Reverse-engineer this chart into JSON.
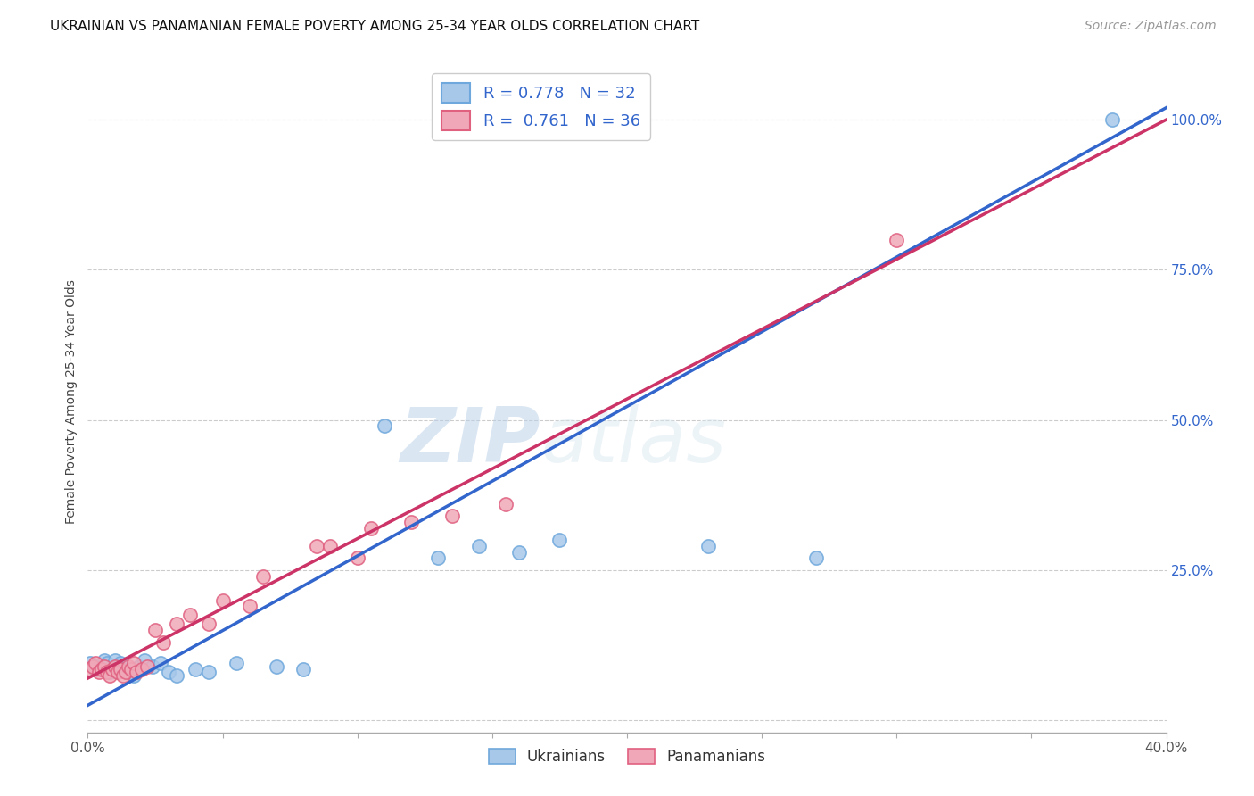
{
  "title": "UKRAINIAN VS PANAMANIAN FEMALE POVERTY AMONG 25-34 YEAR OLDS CORRELATION CHART",
  "source": "Source: ZipAtlas.com",
  "ylabel": "Female Poverty Among 25-34 Year Olds",
  "xlim": [
    0.0,
    0.4
  ],
  "ylim": [
    -0.02,
    1.08
  ],
  "xticks": [
    0.0,
    0.05,
    0.1,
    0.15,
    0.2,
    0.25,
    0.3,
    0.35,
    0.4
  ],
  "yticks_right": [
    0.0,
    0.25,
    0.5,
    0.75,
    1.0
  ],
  "yticklabels_right": [
    "",
    "25.0%",
    "50.0%",
    "75.0%",
    "100.0%"
  ],
  "ukrainians_scatter_x": [
    0.001,
    0.003,
    0.005,
    0.006,
    0.007,
    0.008,
    0.009,
    0.01,
    0.011,
    0.012,
    0.013,
    0.015,
    0.017,
    0.019,
    0.021,
    0.024,
    0.027,
    0.03,
    0.033,
    0.04,
    0.045,
    0.055,
    0.07,
    0.08,
    0.11,
    0.13,
    0.145,
    0.16,
    0.175,
    0.23,
    0.27,
    0.38
  ],
  "ukrainians_scatter_y": [
    0.095,
    0.085,
    0.09,
    0.1,
    0.095,
    0.08,
    0.085,
    0.1,
    0.09,
    0.095,
    0.085,
    0.08,
    0.075,
    0.09,
    0.1,
    0.09,
    0.095,
    0.08,
    0.075,
    0.085,
    0.08,
    0.095,
    0.09,
    0.085,
    0.49,
    0.27,
    0.29,
    0.28,
    0.3,
    0.29,
    0.27,
    1.0
  ],
  "panamanians_scatter_x": [
    0.001,
    0.002,
    0.003,
    0.004,
    0.005,
    0.006,
    0.007,
    0.008,
    0.009,
    0.01,
    0.011,
    0.012,
    0.013,
    0.014,
    0.015,
    0.016,
    0.017,
    0.018,
    0.02,
    0.022,
    0.025,
    0.028,
    0.033,
    0.038,
    0.045,
    0.05,
    0.06,
    0.065,
    0.085,
    0.09,
    0.1,
    0.105,
    0.12,
    0.135,
    0.155,
    0.3
  ],
  "panamanians_scatter_y": [
    0.085,
    0.09,
    0.095,
    0.08,
    0.085,
    0.09,
    0.08,
    0.075,
    0.085,
    0.09,
    0.08,
    0.085,
    0.075,
    0.08,
    0.09,
    0.085,
    0.095,
    0.08,
    0.085,
    0.09,
    0.15,
    0.13,
    0.16,
    0.175,
    0.16,
    0.2,
    0.19,
    0.24,
    0.29,
    0.29,
    0.27,
    0.32,
    0.33,
    0.34,
    0.36,
    0.8
  ],
  "ukrainian_line_x": [
    0.0,
    0.4
  ],
  "ukrainian_line_y": [
    0.025,
    1.02
  ],
  "panamanian_line_x": [
    0.0,
    0.4
  ],
  "panamanian_line_y": [
    0.07,
    1.0
  ],
  "ukrainian_color": "#a8c8ea",
  "panamanian_color": "#f0a8b8",
  "ukrainian_scatter_edge": "#6fa8dc",
  "panamanian_scatter_edge": "#e06080",
  "ukrainian_line_color": "#3366cc",
  "panamanian_line_color": "#cc3366",
  "R_ukrainian": "0.778",
  "N_ukrainian": "32",
  "R_panamanian": "0.761",
  "N_panamanian": "36",
  "watermark_zip": "ZIP",
  "watermark_atlas": "atlas",
  "background_color": "#ffffff",
  "title_fontsize": 11,
  "source_fontsize": 10,
  "axis_label_fontsize": 10,
  "tick_fontsize": 11,
  "legend_fontsize": 13
}
